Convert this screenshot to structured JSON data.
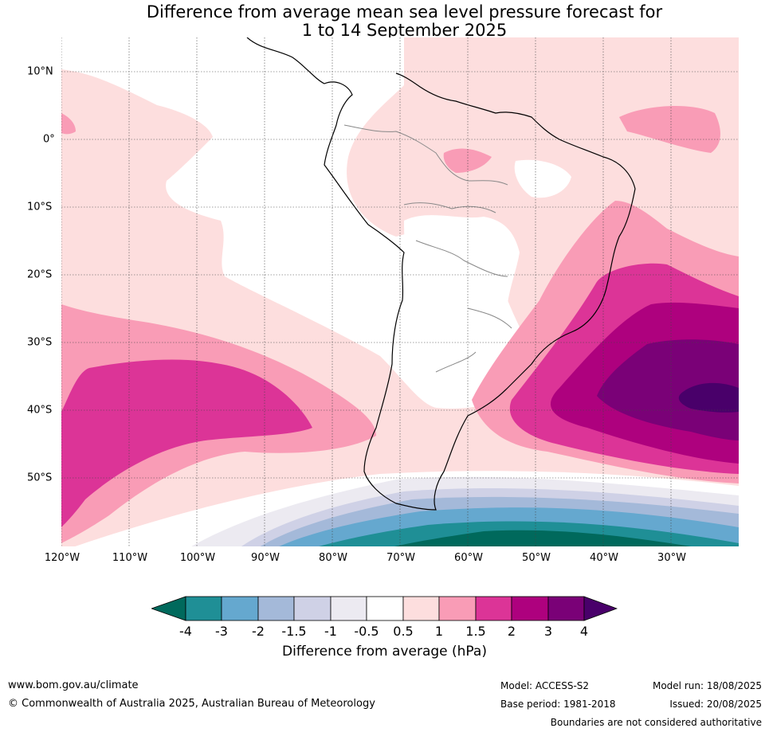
{
  "title": {
    "line1": "Difference from average mean sea level pressure forecast for",
    "line2": "1 to 14 September 2025"
  },
  "map": {
    "latitude_labels": [
      "10°N",
      "0°",
      "10°S",
      "20°S",
      "30°S",
      "40°S",
      "50°S"
    ],
    "longitude_labels": [
      "120°W",
      "110°W",
      "100°W",
      "90°W",
      "80°W",
      "70°W",
      "60°W",
      "50°W",
      "40°W",
      "30°W"
    ],
    "colors": {
      "below_-4": "#00695c",
      "-4_-3": "#1f8f96",
      "-3_-2": "#65a8cf",
      "-2_-1.5": "#a4b9d9",
      "-1.5_-1": "#cfd1e6",
      "-1_-0.5": "#eceaf1",
      "-0.5_0.5": "#ffffff",
      "0.5_1": "#fddede",
      "1_1.5": "#f99cb6",
      "1.5_2": "#dc3497",
      "2_3": "#ae017e",
      "3_4": "#7a0177",
      "above_4": "#49006a"
    }
  },
  "colorbar": {
    "ticks": [
      "-4",
      "-3",
      "-2",
      "-1.5",
      "-1",
      "-0.5",
      "0.5",
      "1",
      "1.5",
      "2",
      "3",
      "4"
    ],
    "label": "Difference from average (hPa)"
  },
  "footer": {
    "website": "www.bom.gov.au/climate",
    "copyright": "© Commonwealth of Australia 2025, Australian Bureau of Meteorology",
    "model": "Model: ACCESS-S2",
    "base_period": "Base period: 1981-2018",
    "model_run": "Model run: 18/08/2025",
    "issued": "Issued: 20/08/2025",
    "disclaimer": "Boundaries are not considered authoritative"
  }
}
